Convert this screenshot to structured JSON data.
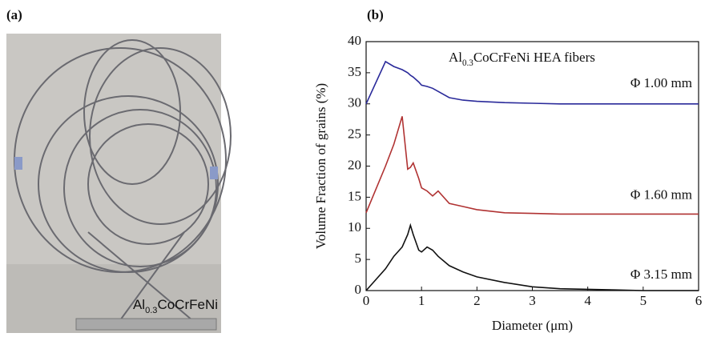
{
  "panel_a": {
    "label": "(a)",
    "photo_label": [
      "Al",
      "0.3",
      "CoCrFeNi"
    ]
  },
  "chart_data": {
    "type": "line",
    "panel_label": "(b)",
    "annotation": [
      "Al",
      "0.3",
      "CoCrFeNi HEA fibers"
    ],
    "x_label": "Diameter (μm)",
    "y_label": "Volume Fraction of grains (%)",
    "x": [
      0,
      0.35,
      0.5,
      0.65,
      0.75,
      0.8,
      0.85,
      0.95,
      1.0,
      1.1,
      1.2,
      1.3,
      1.5,
      1.75,
      2,
      2.5,
      3,
      3.5,
      4,
      4.5,
      5,
      5.5,
      6
    ],
    "series": [
      {
        "name": "Φ 1.00 mm",
        "color": "#2a2a9a",
        "values": [
          30,
          36.8,
          36,
          35.5,
          35,
          34.6,
          34.3,
          33.5,
          33,
          32.8,
          32.5,
          32,
          31,
          30.6,
          30.4,
          30.2,
          30.1,
          30,
          30,
          30,
          30,
          30,
          30
        ]
      },
      {
        "name": "Φ 1.60 mm",
        "color": "#b03232",
        "values": [
          12.5,
          20,
          23.5,
          28,
          19.5,
          19.8,
          20.5,
          18,
          16.5,
          16,
          15.2,
          16,
          14,
          13.5,
          13,
          12.5,
          12.4,
          12.3,
          12.3,
          12.3,
          12.3,
          12.3,
          12.3
        ]
      },
      {
        "name": "Φ 3.15 mm",
        "color": "#111111",
        "values": [
          0,
          3.5,
          5.5,
          7,
          9,
          10.5,
          9,
          6.5,
          6.2,
          7,
          6.5,
          5.5,
          4,
          3,
          2.2,
          1.3,
          0.6,
          0.3,
          0.2,
          0.1,
          0,
          0,
          0
        ]
      }
    ],
    "xlim": [
      0,
      6
    ],
    "xticks": [
      0,
      1,
      2,
      3,
      4,
      5,
      6
    ],
    "ylim": [
      0,
      40
    ],
    "yticks": [
      0,
      5,
      10,
      15,
      20,
      25,
      30,
      35,
      40
    ]
  }
}
